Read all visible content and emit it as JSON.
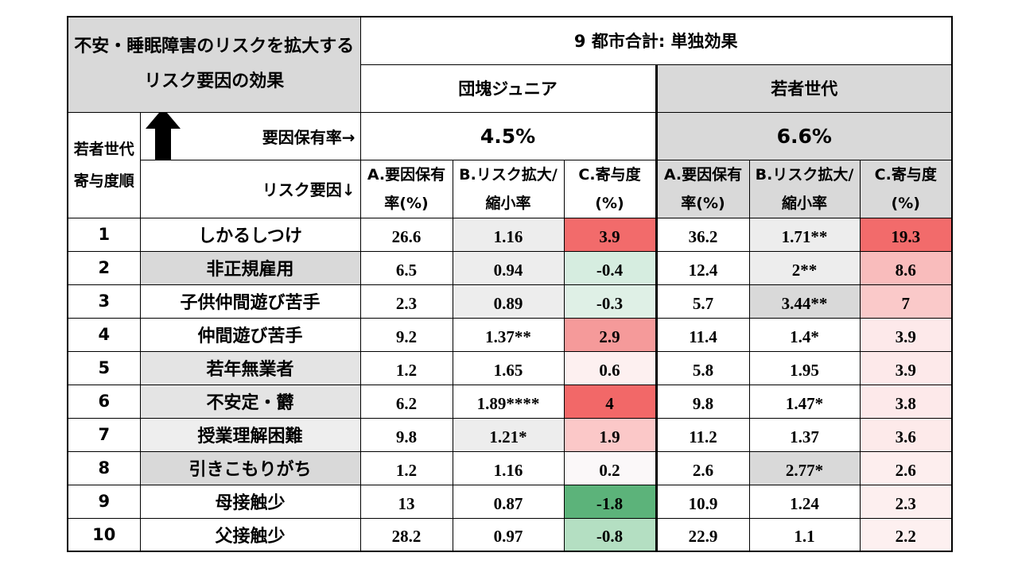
{
  "title": "不安・睡眠障害のリスクを拡大するリスク要因の効果",
  "scope_header": "9 都市合計: 単独効果",
  "groups": [
    "団塊ジュニア",
    "若者世代"
  ],
  "rank_header": "若者世代寄与度順",
  "prevalence_label": "要因保有率→",
  "risk_label": "リスク要因↓",
  "prevalence": [
    "4.5%",
    "6.6%"
  ],
  "col_a": "A.要因保有率(%)",
  "col_b": "B.リスク拡大/縮小率",
  "col_c": "C.寄与度(%)",
  "rows": [
    {
      "rank": "1",
      "factor": "しかるしつけ",
      "dj": [
        "26.6",
        "1.16",
        "3.9"
      ],
      "yg": [
        "36.2",
        "1.71**",
        "19.3"
      ]
    },
    {
      "rank": "2",
      "factor": "非正規雇用",
      "dj": [
        "6.5",
        "0.94",
        "-0.4"
      ],
      "yg": [
        "12.4",
        "2**",
        "8.6"
      ]
    },
    {
      "rank": "3",
      "factor": "子供仲間遊び苦手",
      "dj": [
        "2.3",
        "0.89",
        "-0.3"
      ],
      "yg": [
        "5.7",
        "3.44**",
        "7"
      ]
    },
    {
      "rank": "4",
      "factor": "仲間遊び苦手",
      "dj": [
        "9.2",
        "1.37**",
        "2.9"
      ],
      "yg": [
        "11.4",
        "1.4*",
        "3.9"
      ]
    },
    {
      "rank": "5",
      "factor": "若年無業者",
      "dj": [
        "1.2",
        "1.65",
        "0.6"
      ],
      "yg": [
        "5.8",
        "1.95",
        "3.9"
      ]
    },
    {
      "rank": "6",
      "factor": "不安定・欝",
      "dj": [
        "6.2",
        "1.89****",
        "4"
      ],
      "yg": [
        "9.8",
        "1.47*",
        "3.8"
      ]
    },
    {
      "rank": "7",
      "factor": "授業理解困難",
      "dj": [
        "9.8",
        "1.21*",
        "1.9"
      ],
      "yg": [
        "11.2",
        "1.37",
        "3.6"
      ]
    },
    {
      "rank": "8",
      "factor": "引きこもりがち",
      "dj": [
        "1.2",
        "1.16",
        "0.2"
      ],
      "yg": [
        "2.6",
        "2.77*",
        "2.6"
      ]
    },
    {
      "rank": "9",
      "factor": "母接触少",
      "dj": [
        "13",
        "0.87",
        "-1.8"
      ],
      "yg": [
        "10.9",
        "1.24",
        "2.3"
      ]
    },
    {
      "rank": "10",
      "factor": "父接触少",
      "dj": [
        "28.2",
        "0.97",
        "-0.8"
      ],
      "yg": [
        "22.9",
        "1.1",
        "2.2"
      ]
    }
  ],
  "styles": {
    "factor_bg": [
      "#ffffff",
      "#d9d9d9",
      "#ffffff",
      "#ffffff",
      "#e4e4e4",
      "#e4e4e4",
      "#eeeeee",
      "#d9d9d9",
      "#ffffff",
      "#ffffff"
    ],
    "dj_b_bg": [
      "#ededed",
      "#ededed",
      "#ededed",
      "#ffffff",
      "#ffffff",
      "#ffffff",
      "#ededed",
      "#ffffff",
      "#ffffff",
      "#ffffff"
    ],
    "dj_c_bg": [
      "#f26b6b",
      "#d6ede0",
      "#dff0e6",
      "#f59a9a",
      "#fdf0f0",
      "#f26868",
      "#fbc8c8",
      "#fbf8f9",
      "#5cb37a",
      "#b4dfc2"
    ],
    "yg_a_bg": [
      "#ffffff",
      "#ffffff",
      "#ffffff",
      "#ffffff",
      "#ffffff",
      "#ffffff",
      "#ffffff",
      "#ffffff",
      "#ffffff",
      "#ffffff"
    ],
    "yg_b_bg": [
      "#ededed",
      "#ededed",
      "#d9d9d9",
      "#ffffff",
      "#ffffff",
      "#ffffff",
      "#ffffff",
      "#d9d9d9",
      "#ffffff",
      "#ffffff"
    ],
    "yg_c_bg": [
      "#f26b6b",
      "#f9bcbc",
      "#fac9c9",
      "#fde9ea",
      "#fde9ea",
      "#fde9ea",
      "#fdeaea",
      "#fdeeee",
      "#fdefef",
      "#fdf0f0"
    ]
  }
}
